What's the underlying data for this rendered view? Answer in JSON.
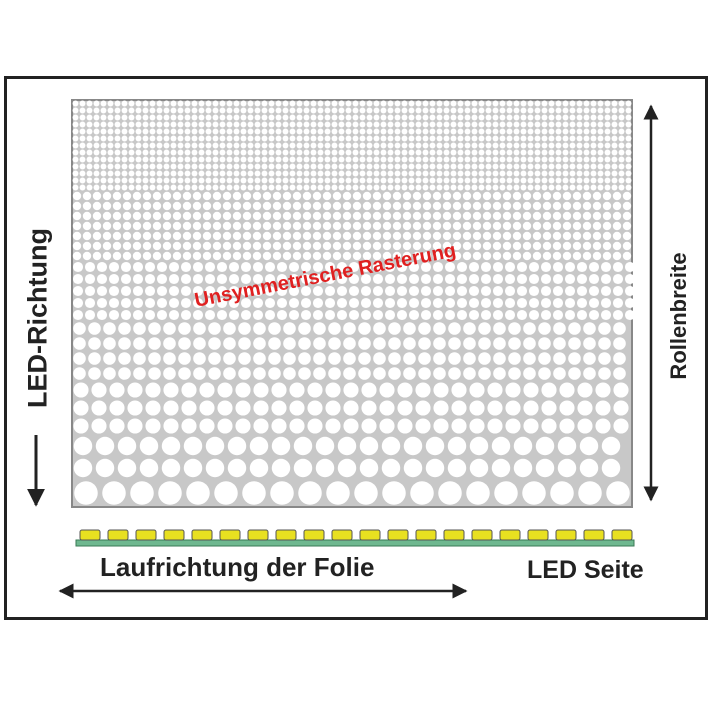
{
  "labels": {
    "center": "Unsymmetrische Rasterung",
    "left": "LED-Richtung",
    "right": "Rollenbreite",
    "bottom": "Laufrichtung der Folie",
    "led_side": "LED Seite"
  },
  "colors": {
    "panel": "#c8c8c8",
    "dots": "#ffffff",
    "led": "#e8e020",
    "strip": "#6fb890",
    "accent_text": "#e02020"
  }
}
